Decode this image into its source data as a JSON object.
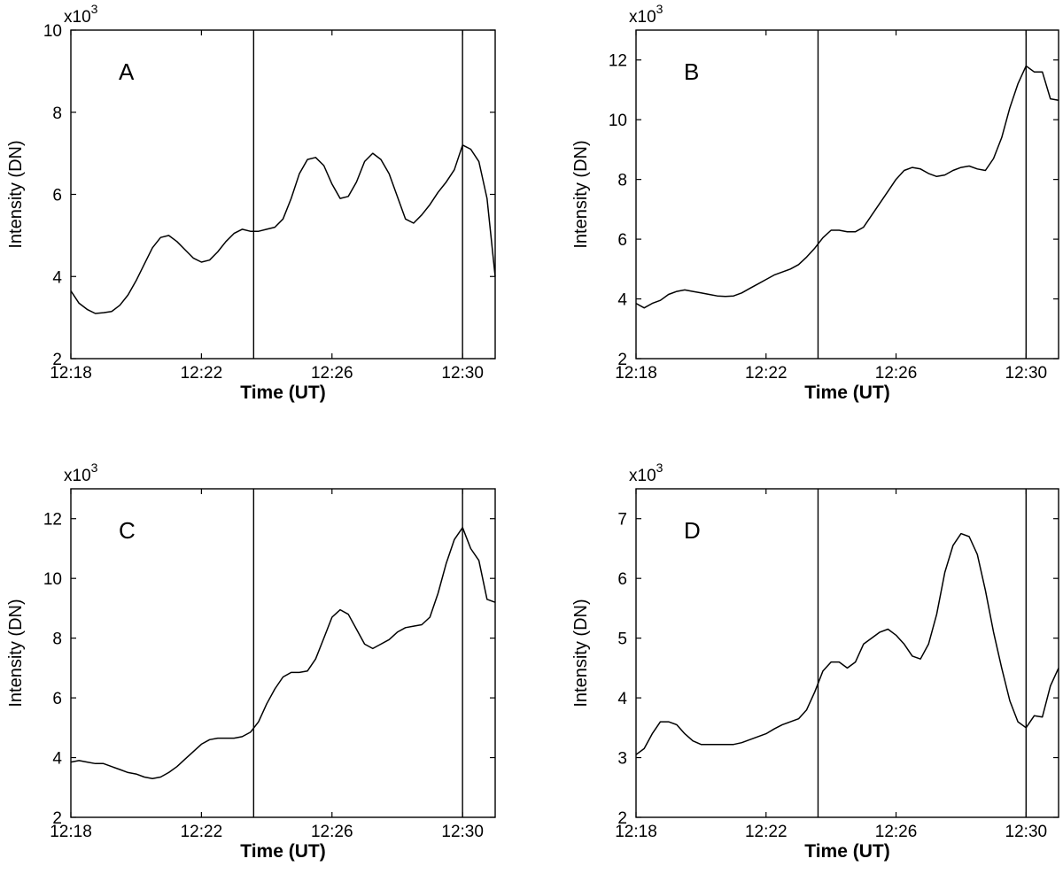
{
  "chart_data": [
    {
      "type": "line",
      "panel": "A",
      "title": "",
      "xlabel": "Time (UT)",
      "ylabel": "Intensity (DN)",
      "y_multiplier": "x10",
      "y_multiplier_exp": "3",
      "xlim": [
        0,
        13
      ],
      "ylim": [
        2,
        10
      ],
      "x_ticks": [
        0,
        4,
        8,
        12
      ],
      "x_tick_labels": [
        "12:18",
        "12:22",
        "12:26",
        "12:30"
      ],
      "y_ticks": [
        2,
        4,
        6,
        8,
        10
      ],
      "y_tick_labels": [
        "2",
        "4",
        "6",
        "8",
        "10"
      ],
      "vlines": [
        5.6,
        12.0
      ],
      "x": [
        0,
        0.25,
        0.5,
        0.75,
        1,
        1.25,
        1.5,
        1.75,
        2,
        2.25,
        2.5,
        2.75,
        3,
        3.25,
        3.5,
        3.75,
        4,
        4.25,
        4.5,
        4.75,
        5,
        5.25,
        5.5,
        5.75,
        6,
        6.25,
        6.5,
        6.75,
        7,
        7.25,
        7.5,
        7.75,
        8,
        8.25,
        8.5,
        8.75,
        9,
        9.25,
        9.5,
        9.75,
        10,
        10.25,
        10.5,
        10.75,
        11,
        11.25,
        11.5,
        11.75,
        12,
        12.25,
        12.5,
        12.75,
        13
      ],
      "series": [
        {
          "name": "A",
          "values": [
            3.65,
            3.35,
            3.2,
            3.1,
            3.12,
            3.15,
            3.3,
            3.55,
            3.9,
            4.3,
            4.7,
            4.95,
            5.0,
            4.85,
            4.65,
            4.45,
            4.35,
            4.4,
            4.6,
            4.85,
            5.05,
            5.15,
            5.1,
            5.1,
            5.15,
            5.2,
            5.4,
            5.9,
            6.5,
            6.85,
            6.9,
            6.7,
            6.25,
            5.9,
            5.95,
            6.3,
            6.8,
            7.0,
            6.85,
            6.5,
            5.95,
            5.4,
            5.3,
            5.5,
            5.75,
            6.05,
            6.3,
            6.6,
            7.2,
            7.1,
            6.8,
            5.9,
            4.0
          ]
        }
      ]
    },
    {
      "type": "line",
      "panel": "B",
      "title": "",
      "xlabel": "Time (UT)",
      "ylabel": "Intensity (DN)",
      "y_multiplier": "x10",
      "y_multiplier_exp": "3",
      "xlim": [
        0,
        13
      ],
      "ylim": [
        2,
        13
      ],
      "x_ticks": [
        0,
        4,
        8,
        12
      ],
      "x_tick_labels": [
        "12:18",
        "12:22",
        "12:26",
        "12:30"
      ],
      "y_ticks": [
        2,
        4,
        6,
        8,
        10,
        12
      ],
      "y_tick_labels": [
        "2",
        "4",
        "6",
        "8",
        "10",
        "12"
      ],
      "vlines": [
        5.6,
        12.0
      ],
      "x": [
        0,
        0.25,
        0.5,
        0.75,
        1,
        1.25,
        1.5,
        1.75,
        2,
        2.25,
        2.5,
        2.75,
        3,
        3.25,
        3.5,
        3.75,
        4,
        4.25,
        4.5,
        4.75,
        5,
        5.25,
        5.5,
        5.75,
        6,
        6.25,
        6.5,
        6.75,
        7,
        7.25,
        7.5,
        7.75,
        8,
        8.25,
        8.5,
        8.75,
        9,
        9.25,
        9.5,
        9.75,
        10,
        10.25,
        10.5,
        10.75,
        11,
        11.25,
        11.5,
        11.75,
        12,
        12.25,
        12.5,
        12.75,
        13
      ],
      "series": [
        {
          "name": "B",
          "values": [
            3.85,
            3.7,
            3.85,
            3.95,
            4.15,
            4.25,
            4.3,
            4.25,
            4.2,
            4.15,
            4.1,
            4.08,
            4.1,
            4.2,
            4.35,
            4.5,
            4.65,
            4.8,
            4.9,
            5.0,
            5.15,
            5.4,
            5.7,
            6.05,
            6.3,
            6.3,
            6.25,
            6.25,
            6.4,
            6.8,
            7.2,
            7.6,
            8.0,
            8.3,
            8.4,
            8.35,
            8.2,
            8.1,
            8.15,
            8.3,
            8.4,
            8.45,
            8.35,
            8.3,
            8.7,
            9.4,
            10.4,
            11.2,
            11.8,
            11.6,
            11.6,
            10.7,
            10.65
          ]
        }
      ]
    },
    {
      "type": "line",
      "panel": "C",
      "title": "",
      "xlabel": "Time (UT)",
      "ylabel": "Intensity (DN)",
      "y_multiplier": "x10",
      "y_multiplier_exp": "3",
      "xlim": [
        0,
        13
      ],
      "ylim": [
        2,
        13
      ],
      "x_ticks": [
        0,
        4,
        8,
        12
      ],
      "x_tick_labels": [
        "12:18",
        "12:22",
        "12:26",
        "12:30"
      ],
      "y_ticks": [
        2,
        4,
        6,
        8,
        10,
        12
      ],
      "y_tick_labels": [
        "2",
        "4",
        "6",
        "8",
        "10",
        "12"
      ],
      "vlines": [
        5.6,
        12.0
      ],
      "x": [
        0,
        0.25,
        0.5,
        0.75,
        1,
        1.25,
        1.5,
        1.75,
        2,
        2.25,
        2.5,
        2.75,
        3,
        3.25,
        3.5,
        3.75,
        4,
        4.25,
        4.5,
        4.75,
        5,
        5.25,
        5.5,
        5.75,
        6,
        6.25,
        6.5,
        6.75,
        7,
        7.25,
        7.5,
        7.75,
        8,
        8.25,
        8.5,
        8.75,
        9,
        9.25,
        9.5,
        9.75,
        10,
        10.25,
        10.5,
        10.75,
        11,
        11.25,
        11.5,
        11.75,
        12,
        12.25,
        12.5,
        12.75,
        13
      ],
      "series": [
        {
          "name": "C",
          "values": [
            3.85,
            3.9,
            3.85,
            3.8,
            3.8,
            3.7,
            3.6,
            3.5,
            3.45,
            3.35,
            3.3,
            3.35,
            3.5,
            3.7,
            3.95,
            4.2,
            4.45,
            4.6,
            4.65,
            4.65,
            4.65,
            4.7,
            4.85,
            5.2,
            5.8,
            6.3,
            6.7,
            6.85,
            6.85,
            6.9,
            7.3,
            8.0,
            8.7,
            8.95,
            8.8,
            8.3,
            7.8,
            7.65,
            7.8,
            7.95,
            8.2,
            8.35,
            8.4,
            8.45,
            8.7,
            9.5,
            10.5,
            11.3,
            11.7,
            11.0,
            10.6,
            9.3,
            9.2
          ]
        }
      ]
    },
    {
      "type": "line",
      "panel": "D",
      "title": "",
      "xlabel": "Time (UT)",
      "ylabel": "Intensity (DN)",
      "y_multiplier": "x10",
      "y_multiplier_exp": "3",
      "xlim": [
        0,
        13
      ],
      "ylim": [
        2,
        7.5
      ],
      "x_ticks": [
        0,
        4,
        8,
        12
      ],
      "x_tick_labels": [
        "12:18",
        "12:22",
        "12:26",
        "12:30"
      ],
      "y_ticks": [
        2,
        3,
        4,
        5,
        6,
        7
      ],
      "y_tick_labels": [
        "2",
        "3",
        "4",
        "5",
        "6",
        "7"
      ],
      "vlines": [
        5.6,
        12.0
      ],
      "x": [
        0,
        0.25,
        0.5,
        0.75,
        1,
        1.25,
        1.5,
        1.75,
        2,
        2.25,
        2.5,
        2.75,
        3,
        3.25,
        3.5,
        3.75,
        4,
        4.25,
        4.5,
        4.75,
        5,
        5.25,
        5.5,
        5.75,
        6,
        6.25,
        6.5,
        6.75,
        7,
        7.25,
        7.5,
        7.75,
        8,
        8.25,
        8.5,
        8.75,
        9,
        9.25,
        9.5,
        9.75,
        10,
        10.25,
        10.5,
        10.75,
        11,
        11.25,
        11.5,
        11.75,
        12,
        12.25,
        12.5,
        12.75,
        13
      ],
      "series": [
        {
          "name": "D",
          "values": [
            3.05,
            3.15,
            3.4,
            3.6,
            3.6,
            3.55,
            3.4,
            3.28,
            3.22,
            3.22,
            3.22,
            3.22,
            3.22,
            3.25,
            3.3,
            3.35,
            3.4,
            3.48,
            3.55,
            3.6,
            3.65,
            3.8,
            4.1,
            4.45,
            4.6,
            4.6,
            4.5,
            4.6,
            4.9,
            5.0,
            5.1,
            5.15,
            5.05,
            4.9,
            4.7,
            4.65,
            4.9,
            5.4,
            6.1,
            6.55,
            6.75,
            6.7,
            6.4,
            5.8,
            5.1,
            4.5,
            3.95,
            3.6,
            3.5,
            3.7,
            3.68,
            4.2,
            4.5
          ]
        }
      ]
    }
  ]
}
